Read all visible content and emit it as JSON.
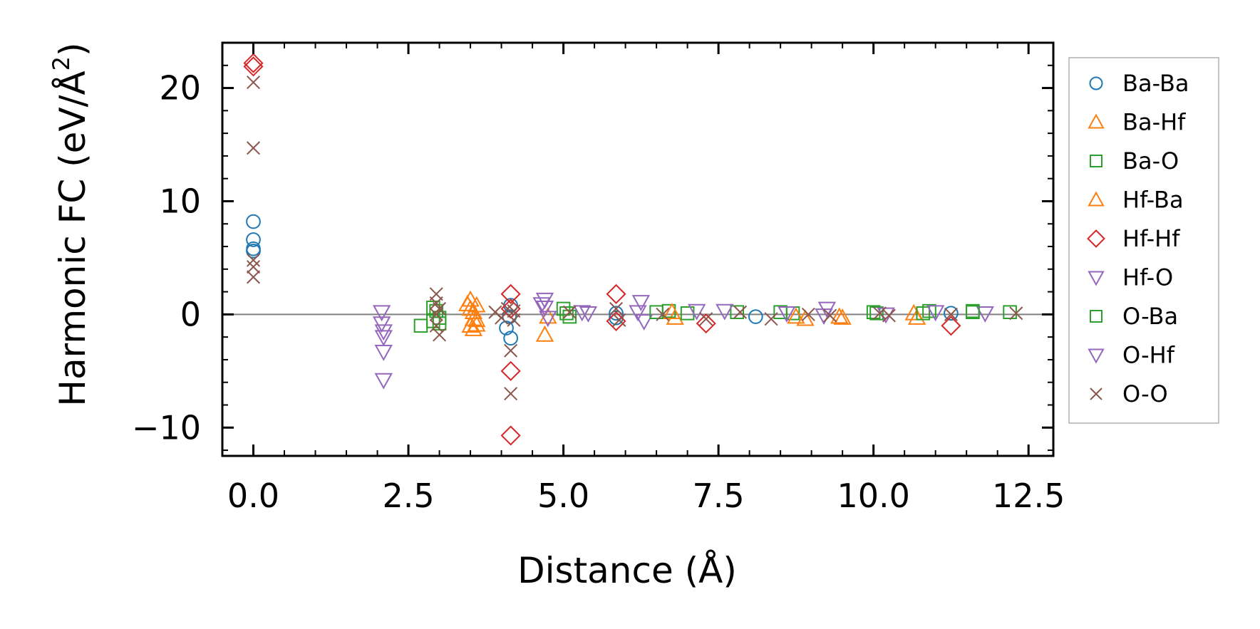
{
  "chart_data": {
    "type": "scatter",
    "title": "",
    "xlabel": "Distance (Å)",
    "ylabel_main": "Harmonic FC (eV/Å",
    "ylabel_sup": "2",
    "ylabel_close": ")",
    "xlim": [
      -0.5,
      12.9
    ],
    "ylim": [
      -12.5,
      24
    ],
    "xticks": [
      0.0,
      2.5,
      5.0,
      7.5,
      10.0,
      12.5
    ],
    "xtick_labels": [
      "0.0",
      "2.5",
      "5.0",
      "7.5",
      "10.0",
      "12.5"
    ],
    "yticks": [
      -10,
      0,
      10,
      20
    ],
    "ytick_labels": [
      "−10",
      "0",
      "10",
      "20"
    ],
    "reference_line_y": 0,
    "legend_position": "outside-right",
    "series": [
      {
        "name": "Ba-Ba",
        "marker": "circle",
        "color": "#1f77b4",
        "x": [
          0.0,
          0.0,
          0.0,
          0.0,
          4.08,
          4.13,
          4.15,
          4.15,
          5.85,
          5.85,
          8.1,
          11.25
        ],
        "y": [
          8.2,
          6.6,
          5.8,
          5.6,
          -1.2,
          -0.2,
          0.8,
          -2.1,
          0.1,
          -0.3,
          -0.2,
          0.1
        ]
      },
      {
        "name": "Ba-Hf",
        "marker": "triangle-up",
        "color": "#ff7f0e",
        "x": [
          3.5,
          3.5,
          3.55,
          3.55,
          3.6,
          3.6,
          4.7,
          6.8,
          8.9,
          9.5,
          10.7
        ],
        "y": [
          1.3,
          0.5,
          -0.4,
          -1.3,
          0.8,
          -0.9,
          -1.8,
          -0.3,
          -0.4,
          -0.3,
          -0.3
        ]
      },
      {
        "name": "Ba-O",
        "marker": "square",
        "color": "#2ca02c",
        "x": [
          2.7,
          2.9,
          2.9,
          3.0,
          5.0,
          5.1,
          6.7,
          7.8,
          8.7,
          10.0,
          10.9,
          11.6,
          12.2
        ],
        "y": [
          -1.0,
          -0.6,
          0.6,
          -0.3,
          0.5,
          -0.2,
          0.3,
          0.2,
          0.1,
          0.2,
          0.3,
          0.3,
          0.2
        ]
      },
      {
        "name": "Hf-Ba",
        "marker": "triangle-up",
        "color": "#ff7f0e",
        "x": [
          3.45,
          3.5,
          3.55,
          3.6,
          4.75,
          6.75,
          8.75,
          9.45,
          10.65
        ],
        "y": [
          0.9,
          -1.0,
          0.2,
          -0.5,
          -0.2,
          0.2,
          -0.2,
          -0.2,
          0.1
        ]
      },
      {
        "name": "Hf-Hf",
        "marker": "diamond",
        "color": "#d62728",
        "x": [
          0.0,
          0.0,
          4.15,
          4.15,
          4.15,
          4.15,
          5.85,
          5.85,
          7.3,
          11.25
        ],
        "y": [
          22.2,
          21.9,
          1.8,
          0.5,
          -5.0,
          -10.7,
          1.8,
          -0.6,
          -0.8,
          -1.0
        ]
      },
      {
        "name": "Hf-O",
        "marker": "triangle-down",
        "color": "#9467bd",
        "x": [
          2.07,
          2.07,
          2.1,
          2.1,
          2.1,
          2.1,
          4.7,
          4.7,
          4.75,
          5.3,
          6.25,
          6.3,
          7.6,
          9.25,
          11.8
        ],
        "y": [
          0.2,
          -0.8,
          -1.5,
          -2.0,
          -3.3,
          -5.8,
          1.3,
          0.6,
          -0.3,
          0.2,
          1.1,
          -0.6,
          0.3,
          0.5,
          0.1
        ]
      },
      {
        "name": "O-Ba",
        "marker": "square",
        "color": "#2ca02c",
        "x": [
          2.95,
          3.0,
          5.05,
          6.5,
          7.0,
          8.5,
          10.05,
          10.8,
          11.6
        ],
        "y": [
          0.3,
          -0.8,
          0.1,
          0.2,
          0.1,
          0.2,
          0.1,
          0.1,
          0.2
        ]
      },
      {
        "name": "O-Hf",
        "marker": "triangle-down",
        "color": "#9467bd",
        "x": [
          4.65,
          5.4,
          6.2,
          7.15,
          8.6,
          9.2,
          10.2,
          11.0
        ],
        "y": [
          0.9,
          0.1,
          0.2,
          0.3,
          0.1,
          -0.1,
          0.0,
          0.2
        ]
      },
      {
        "name": "O-O",
        "marker": "x",
        "color": "#8c564b",
        "x": [
          0.0,
          0.0,
          0.0,
          0.0,
          0.0,
          2.95,
          2.95,
          2.95,
          2.95,
          3.0,
          3.0,
          3.9,
          4.0,
          4.1,
          4.15,
          4.15,
          4.2,
          4.2,
          5.1,
          5.85,
          5.9,
          6.6,
          7.3,
          7.85,
          8.35,
          8.95,
          9.3,
          10.1,
          10.25,
          11.25,
          12.3
        ],
        "y": [
          20.5,
          14.7,
          4.8,
          4.2,
          3.3,
          1.8,
          1.0,
          0.0,
          -1.0,
          -1.8,
          0.5,
          0.2,
          -0.3,
          0.5,
          -3.2,
          -7.0,
          0.3,
          -0.5,
          0.2,
          0.5,
          -0.5,
          0.0,
          -0.4,
          0.2,
          -0.4,
          0.0,
          -0.1,
          0.1,
          -0.1,
          0.0,
          0.1
        ]
      }
    ]
  }
}
